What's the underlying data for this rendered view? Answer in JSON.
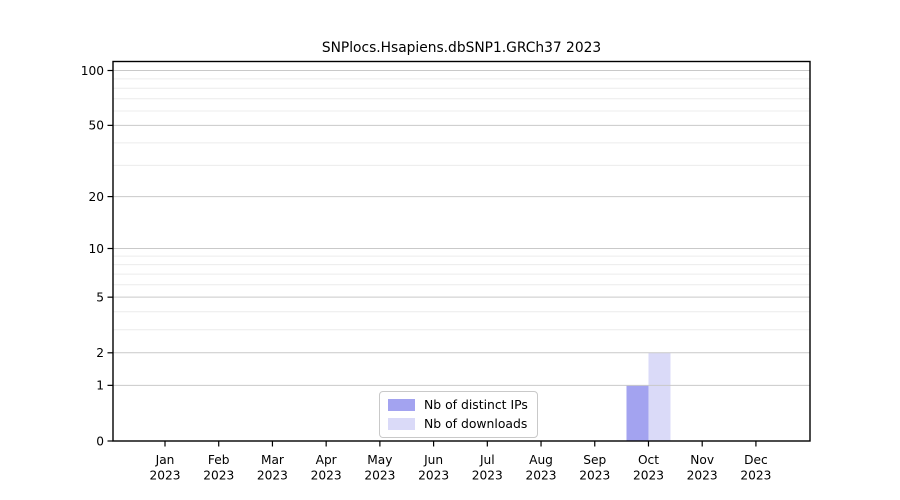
{
  "chart_data": {
    "type": "bar",
    "title": "SNPlocs.Hsapiens.dbSNP1.GRCh37 2023",
    "categories": [
      "Jan",
      "Feb",
      "Mar",
      "Apr",
      "May",
      "Jun",
      "Jul",
      "Aug",
      "Sep",
      "Oct",
      "Nov",
      "Dec"
    ],
    "category_year": "2023",
    "series": [
      {
        "name": "Nb of distinct IPs",
        "color": "#a3a3f0",
        "values": [
          0,
          0,
          0,
          0,
          0,
          0,
          0,
          0,
          0,
          1,
          0,
          0
        ]
      },
      {
        "name": "Nb of downloads",
        "color": "#dadaf8",
        "values": [
          0,
          0,
          0,
          0,
          0,
          0,
          0,
          0,
          0,
          2,
          0,
          0
        ]
      }
    ],
    "yscale": "log1p",
    "yticks": [
      0,
      1,
      2,
      5,
      10,
      20,
      50,
      100
    ],
    "yticks_minor": [
      3,
      4,
      6,
      7,
      8,
      9,
      30,
      40,
      60,
      70,
      80,
      90
    ],
    "ylim": [
      0,
      112
    ],
    "xlabel": "",
    "ylabel": "",
    "grid": "horizontal",
    "legend_position": "inside-bottom-center",
    "colors": {
      "major_grid": "#c9c9c9",
      "minor_grid": "#ececec",
      "axis": "#000000",
      "background": "#ffffff",
      "text": "#000000"
    }
  }
}
